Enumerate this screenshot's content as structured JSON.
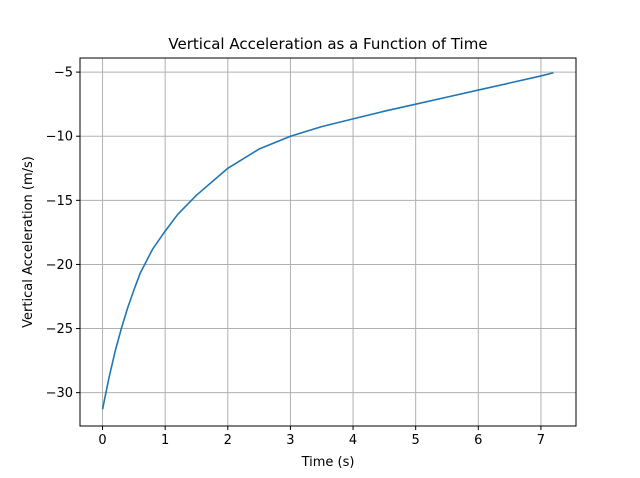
{
  "chart_data": {
    "type": "line",
    "title": "Vertical Acceleration as a Function of Time",
    "xlabel": "Time (s)",
    "ylabel": "Vertical Acceleration (m/s)",
    "xlim": [
      -0.36,
      7.56
    ],
    "ylim": [
      -32.6,
      -3.9
    ],
    "xticks": [
      0,
      1,
      2,
      3,
      4,
      5,
      6,
      7
    ],
    "yticks": [
      -30,
      -25,
      -20,
      -15,
      -10,
      -5
    ],
    "ytick_labels": [
      "−30",
      "−25",
      "−20",
      "−15",
      "−10",
      "−5"
    ],
    "grid": true,
    "series": [
      {
        "color": "#1f77b4",
        "x": [
          0,
          0.1,
          0.2,
          0.3,
          0.4,
          0.5,
          0.6,
          0.8,
          1.0,
          1.2,
          1.5,
          2.0,
          2.5,
          3.0,
          3.5,
          4.0,
          4.5,
          5.0,
          5.5,
          6.0,
          6.5,
          7.0,
          7.2
        ],
        "y": [
          -31.3,
          -28.9,
          -26.8,
          -25.0,
          -23.4,
          -22.0,
          -20.7,
          -18.8,
          -17.4,
          -16.1,
          -14.6,
          -12.5,
          -11.0,
          -10.0,
          -9.25,
          -8.65,
          -8.05,
          -7.5,
          -6.95,
          -6.4,
          -5.85,
          -5.3,
          -5.05
        ]
      }
    ]
  }
}
